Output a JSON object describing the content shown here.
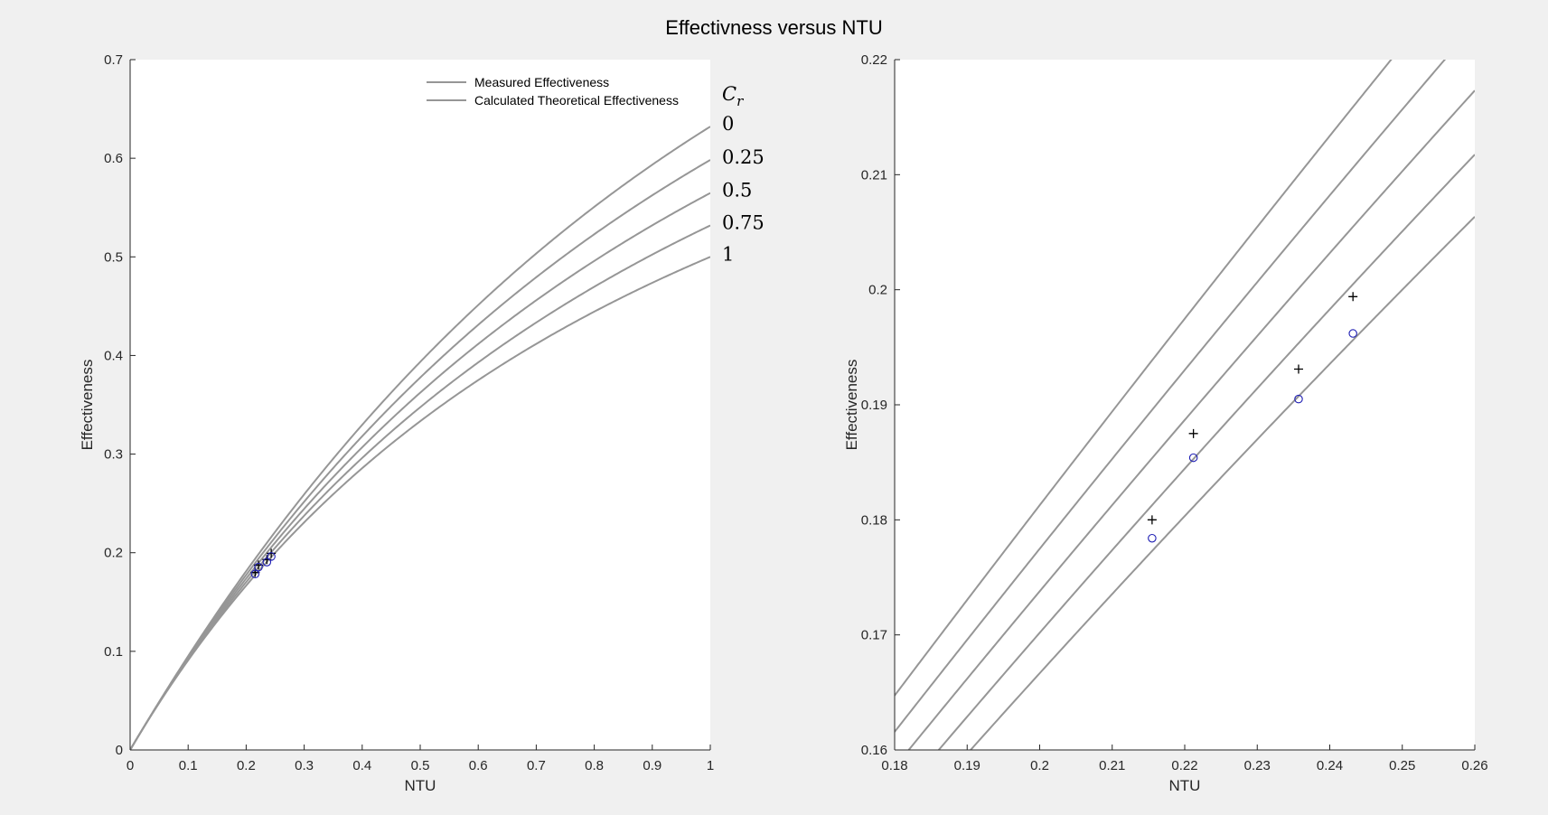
{
  "figure": {
    "title": "Effectivness versus NTU"
  },
  "colors": {
    "curve": "#969696",
    "measured_marker": "#000000",
    "theory_marker": "#1f1fb4",
    "axes_bg": "#ffffff",
    "figure_bg": "#f0f0f0"
  },
  "chart_data": [
    {
      "type": "line",
      "xlabel": "NTU",
      "ylabel": "Effectiveness",
      "xlim": [
        0,
        1
      ],
      "ylim": [
        0,
        0.7
      ],
      "xticks": [
        0,
        0.1,
        0.2,
        0.3,
        0.4,
        0.5,
        0.6,
        0.7,
        0.8,
        0.9,
        1
      ],
      "xtick_labels": [
        "0",
        "0.1",
        "0.2",
        "0.3",
        "0.4",
        "0.5",
        "0.6",
        "0.7",
        "0.8",
        "0.9",
        "1"
      ],
      "yticks": [
        0,
        0.1,
        0.2,
        0.3,
        0.4,
        0.5,
        0.6,
        0.7
      ],
      "ytick_labels": [
        "0",
        "0.1",
        "0.2",
        "0.3",
        "0.4",
        "0.5",
        "0.6",
        "0.7"
      ],
      "legend": {
        "placement": "top-right",
        "entries": [
          "Measured Effectiveness",
          "Calculated Theoretical Effectiveness"
        ]
      },
      "curve_annotation_title": "C_r",
      "curves": [
        {
          "cr": 0,
          "label": "0"
        },
        {
          "cr": 0.25,
          "label": "0.25"
        },
        {
          "cr": 0.5,
          "label": "0.5"
        },
        {
          "cr": 0.75,
          "label": "0.75"
        },
        {
          "cr": 1,
          "label": "1"
        }
      ],
      "measured_points": [
        {
          "x": 0.2155,
          "y": 0.18
        },
        {
          "x": 0.2212,
          "y": 0.1875
        },
        {
          "x": 0.2357,
          "y": 0.1931
        },
        {
          "x": 0.2432,
          "y": 0.1994
        }
      ],
      "theoretical_points": [
        {
          "x": 0.2155,
          "y": 0.1784
        },
        {
          "x": 0.2212,
          "y": 0.1854
        },
        {
          "x": 0.2357,
          "y": 0.1905
        },
        {
          "x": 0.2432,
          "y": 0.1962
        }
      ]
    },
    {
      "type": "line",
      "xlabel": "NTU",
      "ylabel": "Effectiveness",
      "xlim": [
        0.18,
        0.26
      ],
      "ylim": [
        0.16,
        0.22
      ],
      "xticks": [
        0.18,
        0.19,
        0.2,
        0.21,
        0.22,
        0.23,
        0.24,
        0.25,
        0.26
      ],
      "xtick_labels": [
        "0.18",
        "0.19",
        "0.2",
        "0.21",
        "0.22",
        "0.23",
        "0.24",
        "0.25",
        "0.26"
      ],
      "yticks": [
        0.16,
        0.17,
        0.18,
        0.19,
        0.2,
        0.21,
        0.22
      ],
      "ytick_labels": [
        "0.16",
        "0.17",
        "0.18",
        "0.19",
        "0.2",
        "0.21",
        "0.22"
      ],
      "curves": [
        {
          "cr": 0
        },
        {
          "cr": 0.25
        },
        {
          "cr": 0.5
        },
        {
          "cr": 0.75
        },
        {
          "cr": 1
        }
      ],
      "measured_points": [
        {
          "x": 0.2155,
          "y": 0.18
        },
        {
          "x": 0.2212,
          "y": 0.1875
        },
        {
          "x": 0.2357,
          "y": 0.1931
        },
        {
          "x": 0.2432,
          "y": 0.1994
        }
      ],
      "theoretical_points": [
        {
          "x": 0.2155,
          "y": 0.1784
        },
        {
          "x": 0.2212,
          "y": 0.1854
        },
        {
          "x": 0.2357,
          "y": 0.1905
        },
        {
          "x": 0.2432,
          "y": 0.1962
        }
      ]
    }
  ]
}
